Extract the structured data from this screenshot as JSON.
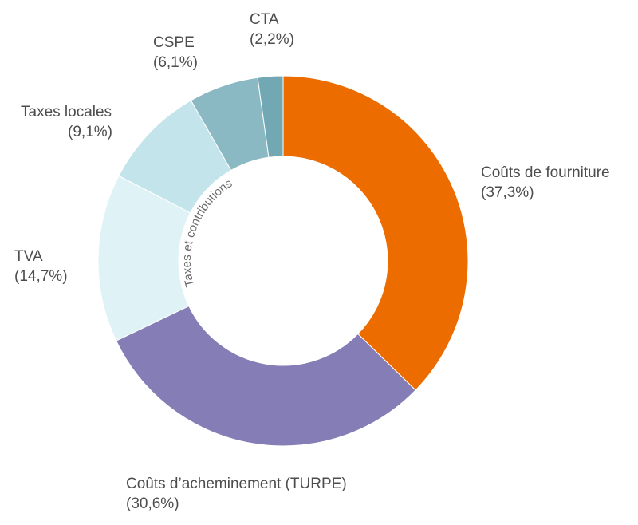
{
  "chart_data": {
    "type": "pie",
    "subtype": "donut",
    "title": "",
    "series": [
      {
        "label": "Coûts de fourniture",
        "value_text": "(37,3%)",
        "value": 37.3,
        "color": "#ec6c00"
      },
      {
        "label": "Coûts d’acheminement (TURPE)",
        "value_text": "(30,6%)",
        "value": 30.6,
        "color": "#857db5"
      },
      {
        "label": "TVA",
        "value_text": "(14,7%)",
        "value": 14.7,
        "color": "#dff2f6"
      },
      {
        "label": "Taxes locales",
        "value_text": "(9,1%)",
        "value": 9.1,
        "color": "#c3e4ea"
      },
      {
        "label": "CSPE",
        "value_text": "(6,1%)",
        "value": 6.1,
        "color": "#8ab9c4"
      },
      {
        "label": "CTA",
        "value_text": "(2,2%)",
        "value": 2.2,
        "color": "#72a8b4"
      }
    ],
    "group_annotation": "Taxes et contributions",
    "legend": "none"
  }
}
